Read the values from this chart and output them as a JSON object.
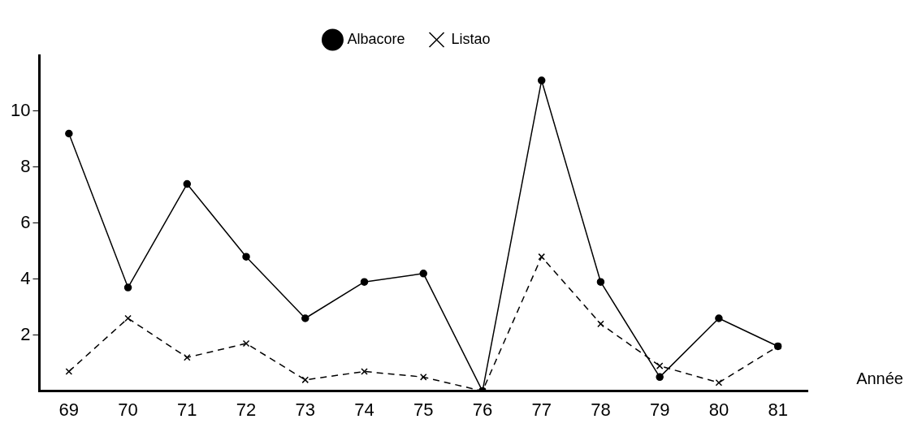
{
  "chart_data": {
    "type": "line",
    "xlabel": "Année",
    "categories": [
      "69",
      "70",
      "71",
      "72",
      "73",
      "74",
      "75",
      "76",
      "77",
      "78",
      "79",
      "80",
      "81"
    ],
    "series": [
      {
        "name": "Albacore",
        "color": "#000000",
        "marker": "circle",
        "line_style": "solid",
        "values": [
          9.2,
          3.7,
          7.4,
          4.8,
          2.6,
          3.9,
          4.2,
          0,
          11.1,
          3.9,
          0.5,
          2.6,
          1.6
        ]
      },
      {
        "name": "Listao",
        "color": "#000000",
        "marker": "cross",
        "line_style": "dashed",
        "values": [
          0.7,
          2.6,
          1.2,
          1.7,
          0.4,
          0.7,
          0.5,
          0,
          4.8,
          2.4,
          0.9,
          0.3,
          1.6
        ]
      }
    ],
    "ylim": [
      0,
      12
    ],
    "yticks": [
      2,
      4,
      6,
      8,
      10
    ],
    "grid": false,
    "legend": "top"
  }
}
